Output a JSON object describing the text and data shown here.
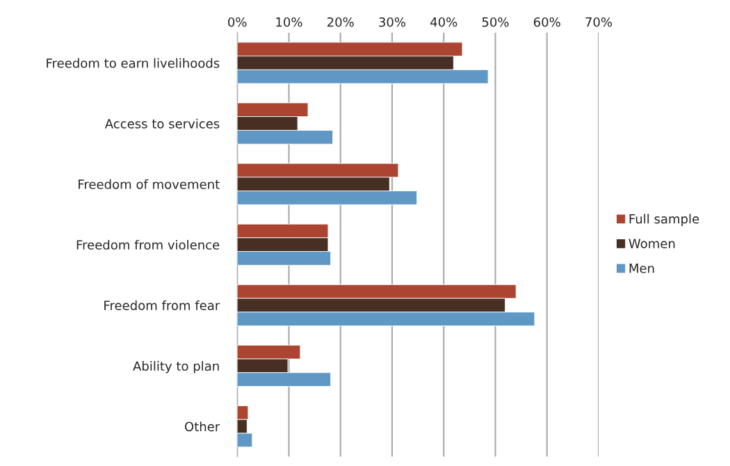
{
  "chart_data": {
    "type": "bar",
    "orientation": "horizontal",
    "categories": [
      "Freedom to earn livelihoods",
      "Access to services",
      "Freedom of movement",
      "Freedom from violence",
      "Freedom from fear",
      "Ability to plan",
      "Other"
    ],
    "series": [
      {
        "name": "Full sample",
        "color": "#ab4532",
        "values": [
          43.6,
          13.7,
          31.2,
          17.6,
          54.0,
          12.2,
          2.1
        ]
      },
      {
        "name": "Women",
        "color": "#472f24",
        "values": [
          41.9,
          11.7,
          29.5,
          17.6,
          51.9,
          9.8,
          1.9
        ]
      },
      {
        "name": "Men",
        "color": "#5f97c5",
        "values": [
          48.6,
          18.5,
          34.8,
          18.1,
          57.6,
          18.1,
          2.9
        ]
      }
    ],
    "xlim": [
      0,
      70
    ],
    "xticks": [
      {
        "value": 0,
        "label": "0%"
      },
      {
        "value": 10,
        "label": "10%"
      },
      {
        "value": 20,
        "label": "20%"
      },
      {
        "value": 30,
        "label": "30%"
      },
      {
        "value": 40,
        "label": "40%"
      },
      {
        "value": 50,
        "label": "50%"
      },
      {
        "value": 60,
        "label": "60%"
      },
      {
        "value": 70,
        "label": "70%"
      }
    ],
    "grid": "x",
    "legend": "right"
  }
}
